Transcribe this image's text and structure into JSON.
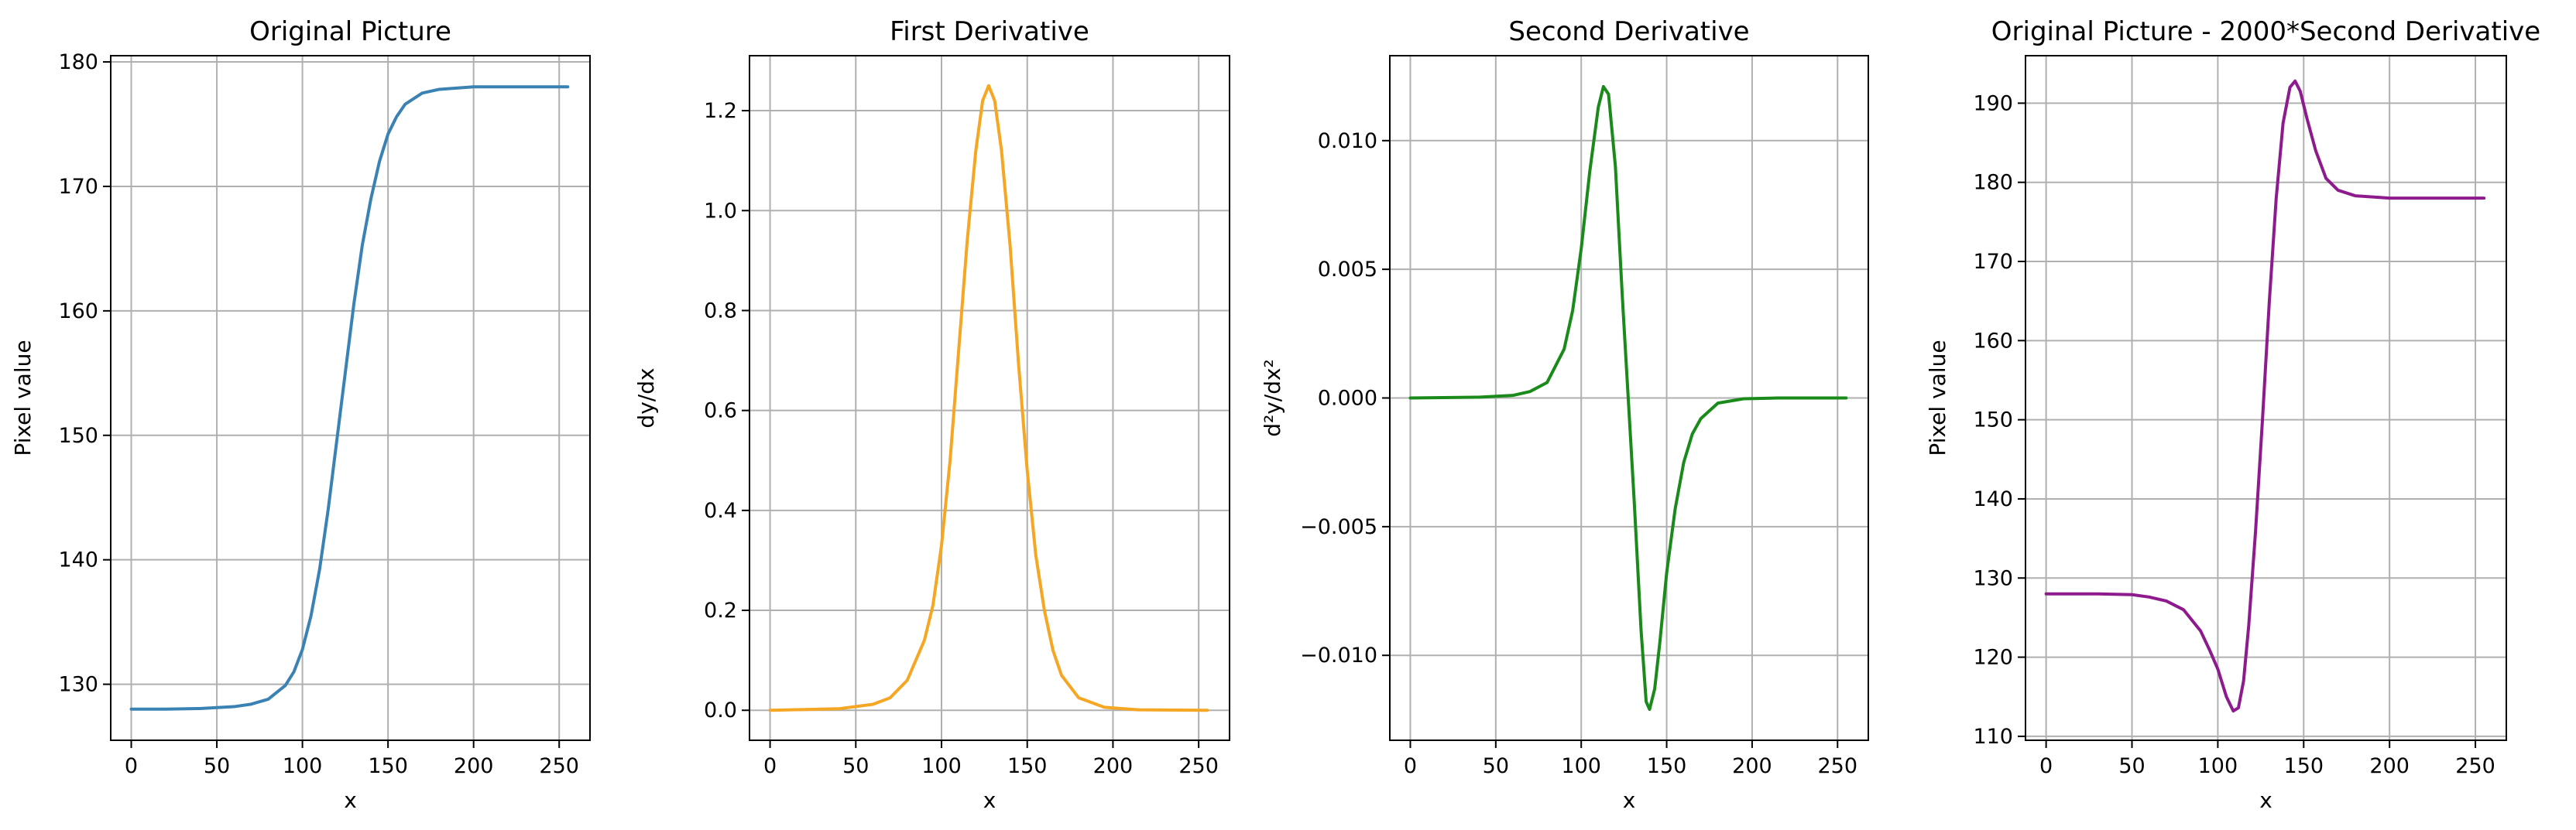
{
  "chart_data": [
    {
      "type": "line",
      "title": "Original Picture",
      "xlabel": "x",
      "ylabel": "Pixel value",
      "xlim": [
        -12,
        268
      ],
      "ylim": [
        125.5,
        180.5
      ],
      "xticks": [
        0,
        50,
        100,
        150,
        200,
        250
      ],
      "yticks": [
        130,
        140,
        150,
        160,
        170,
        180
      ],
      "ytick_labels": [
        "130",
        "140",
        "150",
        "160",
        "170",
        "180"
      ],
      "grid": true,
      "series": [
        {
          "color": "#3b82b4",
          "x": [
            0,
            20,
            40,
            60,
            70,
            80,
            90,
            95,
            100,
            105,
            110,
            115,
            120,
            125,
            130,
            135,
            140,
            145,
            150,
            155,
            160,
            170,
            180,
            200,
            220,
            255
          ],
          "y": [
            128.0,
            128.0,
            128.05,
            128.2,
            128.4,
            128.8,
            129.9,
            131.0,
            132.8,
            135.5,
            139.2,
            144.0,
            149.5,
            155.0,
            160.5,
            165.3,
            169.0,
            172.0,
            174.2,
            175.6,
            176.6,
            177.5,
            177.8,
            178.0,
            178.0,
            178.0
          ]
        }
      ]
    },
    {
      "type": "line",
      "title": "First Derivative",
      "xlabel": "x",
      "ylabel": "dy/dx",
      "xlim": [
        -12,
        268
      ],
      "ylim": [
        -0.06,
        1.31
      ],
      "xticks": [
        0,
        50,
        100,
        150,
        200,
        250
      ],
      "yticks": [
        0.0,
        0.2,
        0.4,
        0.6,
        0.8,
        1.0,
        1.2
      ],
      "ytick_labels": [
        "0.0",
        "0.2",
        "0.4",
        "0.6",
        "0.8",
        "1.0",
        "1.2"
      ],
      "grid": true,
      "series": [
        {
          "color": "#f5a623",
          "x": [
            0,
            40,
            60,
            70,
            80,
            90,
            95,
            100,
            105,
            110,
            115,
            120,
            124,
            127.5,
            131,
            135,
            140,
            145,
            150,
            155,
            160,
            165,
            170,
            180,
            195,
            215,
            255
          ],
          "y": [
            0.0,
            0.003,
            0.012,
            0.025,
            0.06,
            0.14,
            0.21,
            0.33,
            0.5,
            0.72,
            0.94,
            1.12,
            1.22,
            1.25,
            1.22,
            1.12,
            0.93,
            0.69,
            0.48,
            0.31,
            0.2,
            0.12,
            0.07,
            0.025,
            0.006,
            0.001,
            0.0
          ]
        }
      ]
    },
    {
      "type": "line",
      "title": "Second Derivative",
      "xlabel": "x",
      "ylabel": "d²y/dx²",
      "xlim": [
        -12,
        268
      ],
      "ylim": [
        -0.0133,
        0.0133
      ],
      "xticks": [
        0,
        50,
        100,
        150,
        200,
        250
      ],
      "yticks": [
        -0.01,
        -0.005,
        0.0,
        0.005,
        0.01
      ],
      "ytick_labels": [
        "−0.010",
        "−0.005",
        "0.000",
        "0.005",
        "0.010"
      ],
      "grid": true,
      "series": [
        {
          "color": "#1a8a1a",
          "x": [
            0,
            40,
            60,
            70,
            80,
            90,
            95,
            100,
            105,
            110,
            113,
            116,
            120,
            124,
            127.5,
            131,
            135,
            138,
            140,
            143,
            146,
            150,
            155,
            160,
            165,
            170,
            180,
            195,
            215,
            255
          ],
          "y": [
            0.0,
            3e-05,
            0.0001,
            0.00025,
            0.0006,
            0.0019,
            0.0034,
            0.0058,
            0.0088,
            0.0113,
            0.0121,
            0.0118,
            0.009,
            0.004,
            0.0,
            -0.004,
            -0.009,
            -0.0118,
            -0.0121,
            -0.0113,
            -0.0095,
            -0.0068,
            -0.0043,
            -0.0025,
            -0.0014,
            -0.0008,
            -0.0002,
            -3e-05,
            0.0,
            0.0
          ]
        }
      ]
    },
    {
      "type": "line",
      "title": "Original Picture - 2000*Second Derivative",
      "xlabel": "x",
      "ylabel": "Pixel value",
      "xlim": [
        -12,
        268
      ],
      "ylim": [
        109.5,
        196.0
      ],
      "xticks": [
        0,
        50,
        100,
        150,
        200,
        250
      ],
      "yticks": [
        110,
        120,
        130,
        140,
        150,
        160,
        170,
        180,
        190
      ],
      "ytick_labels": [
        "110",
        "120",
        "130",
        "140",
        "150",
        "160",
        "170",
        "180",
        "190"
      ],
      "grid": true,
      "series": [
        {
          "color": "#8e1b8e",
          "x": [
            0,
            30,
            50,
            60,
            70,
            80,
            90,
            95,
            100,
            105,
            109,
            112,
            115,
            118,
            122,
            126,
            130,
            134,
            138,
            142,
            145,
            148,
            152,
            157,
            163,
            170,
            180,
            200,
            255
          ],
          "y": [
            128.0,
            128.0,
            127.9,
            127.6,
            127.1,
            126.0,
            123.3,
            121.0,
            118.5,
            115.0,
            113.2,
            113.6,
            117.0,
            124.0,
            136.0,
            150.0,
            165.0,
            178.0,
            187.5,
            192.0,
            192.8,
            191.5,
            188.0,
            184.0,
            180.5,
            179.0,
            178.3,
            178.0,
            178.0
          ]
        }
      ]
    }
  ]
}
